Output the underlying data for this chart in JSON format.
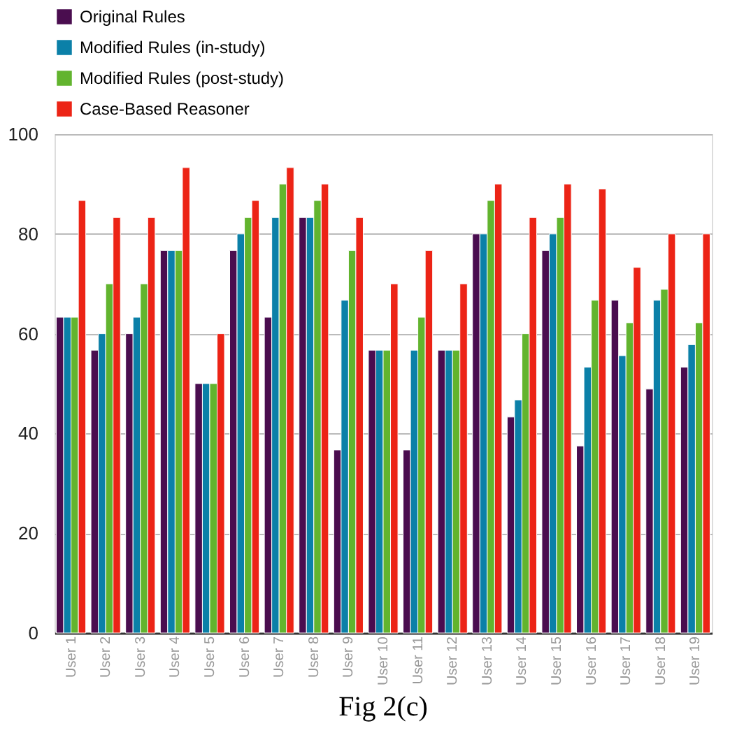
{
  "chart_data": {
    "type": "bar",
    "categories": [
      "User 1",
      "User 2",
      "User 3",
      "User 4",
      "User 5",
      "User 6",
      "User 7",
      "User 8",
      "User 9",
      "User 10",
      "User 11",
      "User 12",
      "User 13",
      "User 14",
      "User 15",
      "User 16",
      "User 17",
      "User 18",
      "User 19"
    ],
    "series": [
      {
        "name": "Original Rules",
        "color": "#4a0d4f",
        "values": [
          63.3,
          56.7,
          60,
          76.7,
          50,
          76.7,
          63.3,
          83.3,
          36.7,
          56.7,
          36.7,
          56.7,
          80,
          43.3,
          76.7,
          37.5,
          66.7,
          48.9,
          53.3
        ]
      },
      {
        "name": "Modified Rules (in-study)",
        "color": "#0b80a8",
        "values": [
          63.3,
          60,
          63.3,
          76.7,
          50,
          80,
          83.3,
          83.3,
          66.7,
          56.7,
          56.7,
          56.7,
          80,
          46.7,
          80,
          53.3,
          55.6,
          66.7,
          57.8
        ]
      },
      {
        "name": "Modified Rules (post-study)",
        "color": "#62b42e",
        "values": [
          63.3,
          70,
          70,
          76.7,
          50,
          83.3,
          90,
          86.7,
          76.7,
          56.7,
          63.3,
          56.7,
          86.7,
          60,
          83.3,
          66.7,
          62.2,
          68.9,
          62.2
        ]
      },
      {
        "name": "Case-Based Reasoner",
        "color": "#ec2416",
        "values": [
          86.7,
          83.3,
          83.3,
          93.3,
          60,
          86.7,
          93.3,
          90,
          83.3,
          70,
          76.7,
          70,
          90,
          83.3,
          90,
          89,
          73.3,
          80,
          80
        ]
      }
    ],
    "ylim": [
      0,
      100
    ],
    "yticks": [
      0,
      20,
      40,
      60,
      80,
      100
    ],
    "grid": "y",
    "legend": "top",
    "annotations": [
      "Fig 2(c)"
    ]
  }
}
